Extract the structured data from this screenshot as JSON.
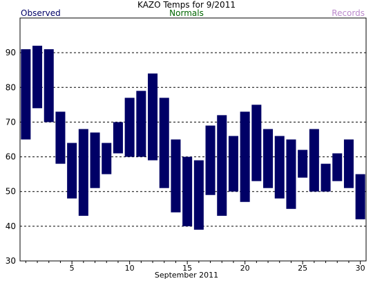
{
  "chart_data": {
    "type": "bar",
    "title": "KAZO Temps for  9/2011",
    "xlabel": "September 2011",
    "legend": [
      {
        "label": "Observed",
        "color": "#000066"
      },
      {
        "label": "Normals",
        "color": "#006600"
      },
      {
        "label": "Records",
        "color": "#bb88cc"
      }
    ],
    "ylim": [
      30,
      100
    ],
    "yticks": [
      30,
      40,
      50,
      60,
      70,
      80,
      90
    ],
    "xlim": [
      0.5,
      30.5
    ],
    "xtick_labels": [
      5,
      10,
      15,
      20,
      25,
      30
    ],
    "grid": "horizontal dashed",
    "bar_color": "#000066",
    "series": [
      {
        "name": "Observed",
        "days": [
          1,
          2,
          3,
          4,
          5,
          6,
          7,
          8,
          9,
          10,
          11,
          12,
          13,
          14,
          15,
          16,
          17,
          18,
          19,
          20,
          21,
          22,
          23,
          24,
          25,
          26,
          27,
          28,
          29,
          30
        ],
        "high": [
          91,
          92,
          91,
          73,
          64,
          68,
          67,
          64,
          70,
          77,
          79,
          84,
          77,
          65,
          60,
          59,
          69,
          72,
          66,
          73,
          75,
          68,
          66,
          65,
          62,
          68,
          58,
          61,
          65,
          55
        ],
        "low": [
          65,
          74,
          70,
          58,
          48,
          43,
          51,
          55,
          61,
          60,
          60,
          59,
          51,
          44,
          40,
          39,
          49,
          43,
          50,
          47,
          53,
          51,
          48,
          45,
          54,
          50,
          50,
          53,
          51,
          42
        ]
      }
    ]
  }
}
